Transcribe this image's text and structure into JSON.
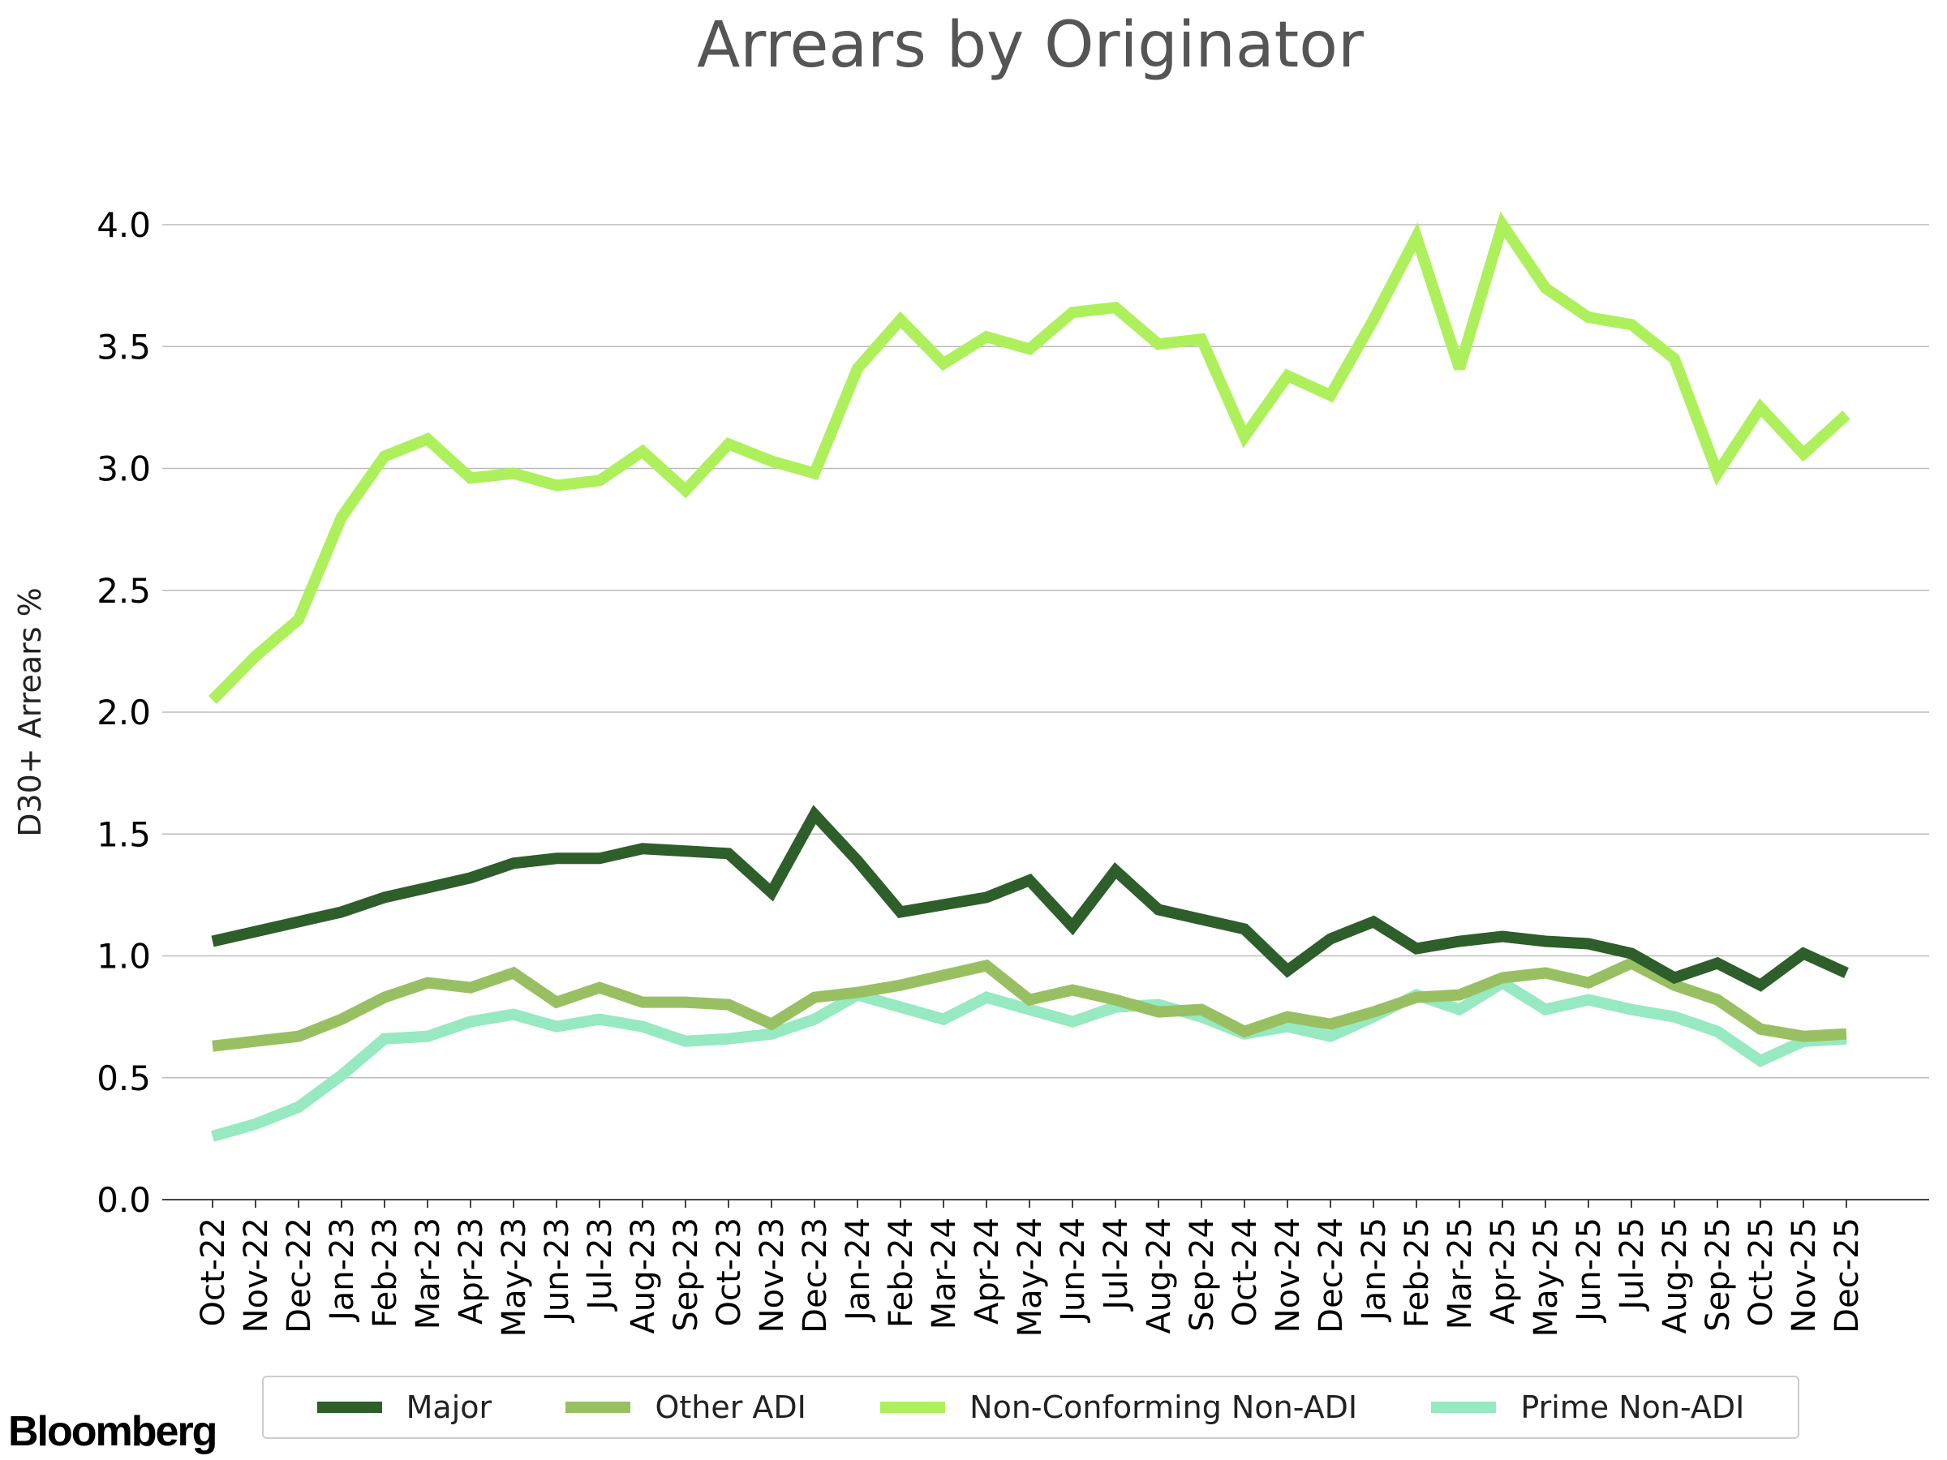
{
  "chart_data": {
    "type": "line",
    "title": "Arrears by Originator",
    "xlabel": "",
    "ylabel": "D30+ Arrears %",
    "ylim": [
      0,
      4.0
    ],
    "yticks": [
      "0.0",
      "0.5",
      "1.0",
      "1.5",
      "2.0",
      "2.5",
      "3.0",
      "3.5",
      "4.0"
    ],
    "grid": "horizontal",
    "legend_position": "bottom",
    "x": [
      "Oct-22",
      "Nov-22",
      "Dec-22",
      "Jan-23",
      "Feb-23",
      "Mar-23",
      "Apr-23",
      "May-23",
      "Jun-23",
      "Jul-23",
      "Aug-23",
      "Sep-23",
      "Oct-23",
      "Nov-23",
      "Dec-23",
      "Jan-24",
      "Feb-24",
      "Mar-24",
      "Apr-24",
      "May-24",
      "Jun-24",
      "Jul-24",
      "Aug-24",
      "Sep-24",
      "Oct-24",
      "Nov-24",
      "Dec-24",
      "Jan-25",
      "Feb-25",
      "Mar-25",
      "Apr-25",
      "May-25",
      "Jun-25",
      "Jul-25",
      "Aug-25",
      "Sep-25",
      "Oct-25",
      "Nov-25",
      "Dec-25"
    ],
    "series": [
      {
        "name": "Major",
        "color": "#2e5e2a",
        "values": [
          1.06,
          1.1,
          1.14,
          1.18,
          1.24,
          1.28,
          1.32,
          1.38,
          1.4,
          1.4,
          1.44,
          1.43,
          1.42,
          1.26,
          1.58,
          1.39,
          1.18,
          1.21,
          1.24,
          1.31,
          1.12,
          1.35,
          1.19,
          1.15,
          1.11,
          0.94,
          1.07,
          1.14,
          1.03,
          1.06,
          1.08,
          1.06,
          1.05,
          1.01,
          0.91,
          0.97,
          0.88,
          1.01,
          0.93
        ]
      },
      {
        "name": "Other ADI",
        "color": "#98c063",
        "values": [
          0.63,
          0.65,
          0.67,
          0.74,
          0.83,
          0.89,
          0.87,
          0.93,
          0.81,
          0.87,
          0.81,
          0.81,
          0.8,
          0.72,
          0.83,
          0.85,
          0.88,
          0.92,
          0.96,
          0.82,
          0.86,
          0.82,
          0.77,
          0.78,
          0.69,
          0.75,
          0.72,
          0.77,
          0.83,
          0.84,
          0.91,
          0.93,
          0.89,
          0.97,
          0.88,
          0.82,
          0.7,
          0.67,
          0.68
        ]
      },
      {
        "name": "Non-Conforming Non-ADI",
        "color": "#adf05c",
        "values": [
          2.05,
          2.23,
          2.38,
          2.8,
          3.05,
          3.12,
          2.96,
          2.98,
          2.93,
          2.95,
          3.07,
          2.91,
          3.1,
          3.03,
          2.98,
          3.41,
          3.61,
          3.43,
          3.54,
          3.49,
          3.64,
          3.66,
          3.51,
          3.53,
          3.13,
          3.38,
          3.3,
          3.61,
          3.95,
          3.41,
          4.0,
          3.74,
          3.62,
          3.59,
          3.45,
          2.98,
          3.25,
          3.06,
          3.22
        ]
      },
      {
        "name": "Prime Non-ADI",
        "color": "#96e9c0",
        "values": [
          0.26,
          0.31,
          0.38,
          0.51,
          0.66,
          0.67,
          0.73,
          0.76,
          0.71,
          0.74,
          0.71,
          0.65,
          0.66,
          0.68,
          0.74,
          0.84,
          0.79,
          0.74,
          0.83,
          0.78,
          0.73,
          0.79,
          0.8,
          0.75,
          0.68,
          0.71,
          0.67,
          0.75,
          0.84,
          0.78,
          0.89,
          0.78,
          0.82,
          0.78,
          0.75,
          0.69,
          0.57,
          0.65,
          0.66
        ]
      }
    ]
  },
  "branding": {
    "logo_text": "Bloomberg"
  }
}
